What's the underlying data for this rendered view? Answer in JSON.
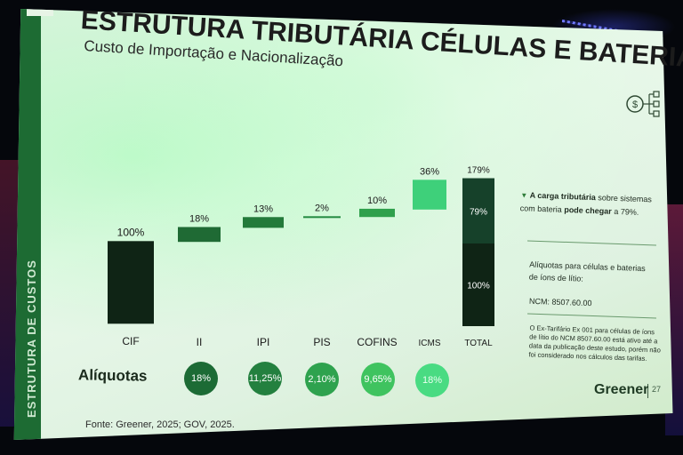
{
  "slide": {
    "title": "ESTRUTURA TRIBUTÁRIA CÉLULAS E BATERIAS",
    "subtitle": "Custo de Importação e Nacionalização",
    "sidebar_label": "ESTRUTURA DE CUSTOS",
    "aliquotas_label": "Alíquotas",
    "source": "Fonte: Greener, 2025; GOV, 2025.",
    "brand": "Greener",
    "page_number": "27"
  },
  "side_panel": {
    "note_bold_1": "A carga tributária",
    "note_1": "sobre sistemas com bateria",
    "note_bold_2": "pode chegar",
    "note_2": "a 79%.",
    "aliquotas_title": "Alíquotas para células e baterias de íons de lítio:",
    "ncm": "NCM: 8507.60.00",
    "ex_tarifario": "O Ex-Tarifário Ex 001 para células de íons de lítio do NCM 8507.60.00 está ativo até a data da publicação deste estudo, porém não foi considerado nos cálculos das tarifas."
  },
  "chart_data": {
    "type": "bar",
    "subtype": "waterfall",
    "categories": [
      "CIF",
      "II",
      "IPI",
      "PIS",
      "COFINS",
      "ICMS",
      "TOTAL"
    ],
    "values": [
      100,
      18,
      13,
      2,
      10,
      36,
      179
    ],
    "value_labels": [
      "100%",
      "18%",
      "13%",
      "2%",
      "10%",
      "36%",
      "179%"
    ],
    "total_breakdown": [
      {
        "label": "100%",
        "value": 100
      },
      {
        "label": "79%",
        "value": 79
      }
    ],
    "colors": [
      "#0f2415",
      "#1f6a34",
      "#237a3a",
      "#238a40",
      "#2fa04c",
      "#3ed07a",
      "#0f2415"
    ],
    "total_top_color": "#16412a",
    "grid": false
  },
  "aliquotas": [
    {
      "category": "II",
      "label": "18%",
      "color": "#1c6b35",
      "text_color": "#ffffff"
    },
    {
      "category": "IPI",
      "label": "11,25%",
      "color": "#23803f",
      "text_color": "#ffffff"
    },
    {
      "category": "PIS",
      "label": "2,10%",
      "color": "#2ea24e",
      "text_color": "#ffffff"
    },
    {
      "category": "COFINS",
      "label": "9,65%",
      "color": "#3fc35f",
      "text_color": "#ffffff"
    },
    {
      "category": "ICMS",
      "label": "18%",
      "color": "#49db82",
      "text_color": "#e9fff0"
    }
  ]
}
